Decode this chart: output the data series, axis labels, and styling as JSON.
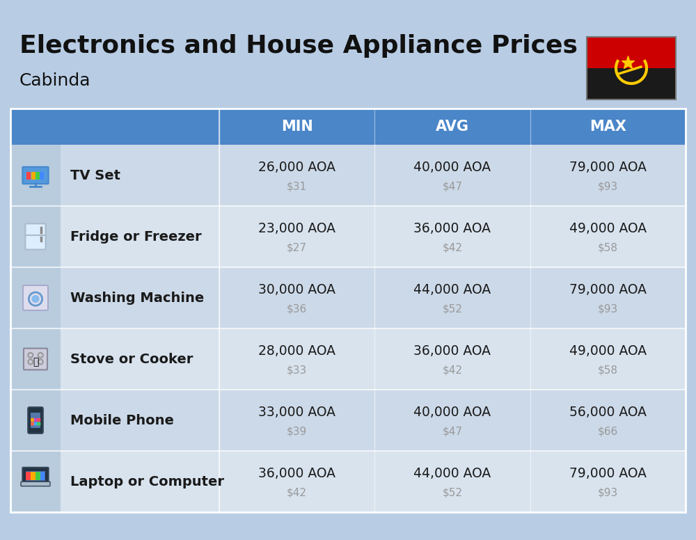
{
  "title": "Electronics and House Appliance Prices",
  "subtitle": "Cabinda",
  "bg_color": "#b8cce4",
  "header_color": "#4a86c8",
  "header_text_color": "#ffffff",
  "columns": [
    "MIN",
    "AVG",
    "MAX"
  ],
  "rows": [
    {
      "name": "TV Set",
      "icon_key": "tv",
      "min_aoa": "26,000 AOA",
      "min_usd": "$31",
      "avg_aoa": "40,000 AOA",
      "avg_usd": "$47",
      "max_aoa": "79,000 AOA",
      "max_usd": "$93"
    },
    {
      "name": "Fridge or Freezer",
      "icon_key": "fridge",
      "min_aoa": "23,000 AOA",
      "min_usd": "$27",
      "avg_aoa": "36,000 AOA",
      "avg_usd": "$42",
      "max_aoa": "49,000 AOA",
      "max_usd": "$58"
    },
    {
      "name": "Washing Machine",
      "icon_key": "washing",
      "min_aoa": "30,000 AOA",
      "min_usd": "$36",
      "avg_aoa": "44,000 AOA",
      "avg_usd": "$52",
      "max_aoa": "79,000 AOA",
      "max_usd": "$93"
    },
    {
      "name": "Stove or Cooker",
      "icon_key": "stove",
      "min_aoa": "28,000 AOA",
      "min_usd": "$33",
      "avg_aoa": "36,000 AOA",
      "avg_usd": "$42",
      "max_aoa": "49,000 AOA",
      "max_usd": "$58"
    },
    {
      "name": "Mobile Phone",
      "icon_key": "phone",
      "min_aoa": "33,000 AOA",
      "min_usd": "$39",
      "avg_aoa": "40,000 AOA",
      "avg_usd": "$47",
      "max_aoa": "56,000 AOA",
      "max_usd": "$66"
    },
    {
      "name": "Laptop or Computer",
      "icon_key": "laptop",
      "min_aoa": "36,000 AOA",
      "min_usd": "$42",
      "avg_aoa": "44,000 AOA",
      "avg_usd": "$52",
      "max_aoa": "79,000 AOA",
      "max_usd": "$93"
    }
  ],
  "row_colors": [
    "#ccd9e8",
    "#d8e3ee"
  ],
  "icon_bg_color": "#b8ccde",
  "flag_red": "#cc0000",
  "flag_black": "#1a1a1a",
  "flag_yellow": "#ffcc00",
  "cell_text_color": "#1a1a1a",
  "usd_text_color": "#999999",
  "divider_color": "#ffffff"
}
